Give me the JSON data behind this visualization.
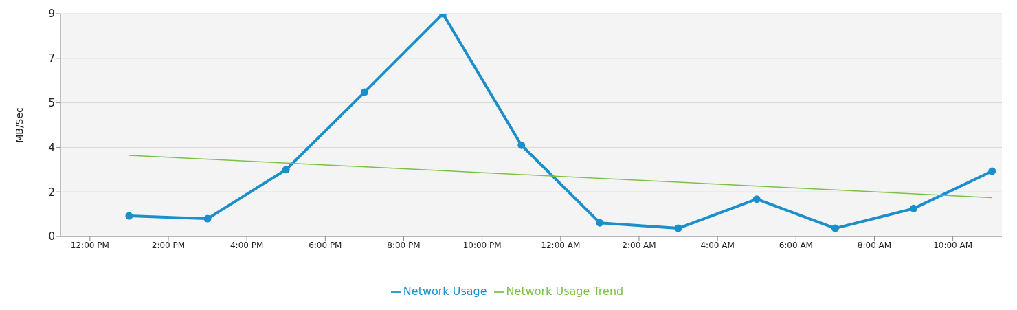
{
  "chart_data": {
    "type": "line",
    "ylabel": "MB/Sec",
    "xlim": [
      "--01-01T11:15",
      "--01-02T11:15"
    ],
    "xticks": [
      {
        "value": "--01-01T12:00",
        "label": "12:00 PM"
      },
      {
        "value": "--01-01T14:00",
        "label": "2:00 PM"
      },
      {
        "value": "--01-01T16:00",
        "label": "4:00 PM"
      },
      {
        "value": "--01-01T18:00",
        "label": "6:00 PM"
      },
      {
        "value": "--01-01T20:00",
        "label": "8:00 PM"
      },
      {
        "value": "--01-01T22:00",
        "label": "10:00 PM"
      },
      {
        "value": "--01-02T00:00",
        "label": "12:00 AM"
      },
      {
        "value": "--01-02T02:00",
        "label": "2:00 AM"
      },
      {
        "value": "--01-02T04:00",
        "label": "4:00 AM"
      },
      {
        "value": "--01-02T06:00",
        "label": "6:00 AM"
      },
      {
        "value": "--01-02T08:00",
        "label": "8:00 AM"
      },
      {
        "value": "--01-02T10:00",
        "label": "10:00 AM"
      }
    ],
    "ylim": [
      0,
      9
    ],
    "yticks": [
      0,
      {
        "value": 1.8,
        "label": "2"
      },
      {
        "value": 3.6,
        "label": "4"
      },
      {
        "value": 5.4,
        "label": "5"
      },
      {
        "value": 7.2,
        "label": "7"
      },
      9
    ],
    "grid": "y",
    "legend": "bottom",
    "line_style": "solid",
    "series": [
      {
        "name": "Network Usage",
        "color": "#1a8fca",
        "marker": "circle",
        "x": [
          "--01-01T13:00",
          "--01-01T15:00",
          "--01-01T17:00",
          "--01-01T19:00",
          "--01-01T21:00",
          "--01-01T23:00",
          "--01-02T01:00",
          "--01-02T03:00",
          "--01-02T05:00",
          "--01-02T07:00",
          "--01-02T09:00",
          "--01-02T11:00"
        ],
        "values": [
          0.83,
          0.72,
          2.7,
          5.83,
          9.0,
          3.69,
          0.55,
          0.33,
          1.51,
          0.33,
          1.13,
          2.64
        ]
      },
      {
        "name": "Network Usage Trend",
        "color": "#7dc143",
        "marker": "none",
        "x": [
          "--01-01T13:00",
          "--01-02T11:00"
        ],
        "values": [
          3.28,
          1.57
        ]
      }
    ]
  }
}
